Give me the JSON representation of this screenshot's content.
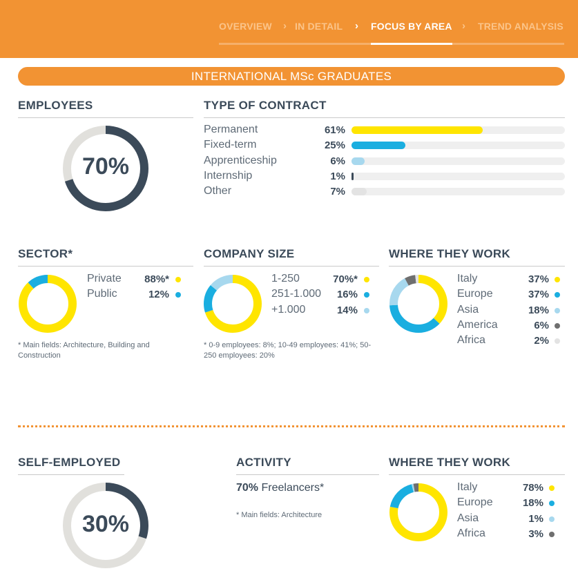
{
  "nav": {
    "items": [
      "OVERVIEW",
      "IN DETAIL",
      "FOCUS BY AREA",
      "TREND ANALYSIS"
    ],
    "separator": "›",
    "active": "FOCUS BY AREA"
  },
  "banner": "INTERNATIONAL MSc GRADUATES",
  "employees": {
    "heading": "EMPLOYEES",
    "percent": "70%",
    "value": 70
  },
  "contract": {
    "heading": "TYPE OF CONTRACT",
    "rows": [
      {
        "label": "Permanent",
        "pct": "61%",
        "value": 61,
        "color": "#ffe500"
      },
      {
        "label": "Fixed-term",
        "pct": "25%",
        "value": 25,
        "color": "#1aaee0"
      },
      {
        "label": "Apprenticeship",
        "pct": "6%",
        "value": 6,
        "color": "#a7d8ee"
      },
      {
        "label": "Internship",
        "pct": "1%",
        "value": 1,
        "color": "#3b4a59"
      },
      {
        "label": "Other",
        "pct": "7%",
        "value": 7,
        "color": "#e3e3e3"
      }
    ]
  },
  "sector": {
    "heading": "SECTOR*",
    "rows": [
      {
        "label": "Private",
        "pct": "88%*",
        "value": 88,
        "color": "#ffe500"
      },
      {
        "label": "Public",
        "pct": "12%",
        "value": 12,
        "color": "#1aaee0"
      }
    ],
    "note": "* Main fields: Architecture, Building and Construction"
  },
  "company_size": {
    "heading": "COMPANY SIZE",
    "rows": [
      {
        "label": "1-250",
        "pct": "70%*",
        "value": 70,
        "color": "#ffe500"
      },
      {
        "label": "251-1.000",
        "pct": "16%",
        "value": 16,
        "color": "#1aaee0"
      },
      {
        "label": "+1.000",
        "pct": "14%",
        "value": 14,
        "color": "#a7d8ee"
      }
    ],
    "note": "* 0-9 employees: 8%; 10-49 employees: 41%; 50-250 employees: 20%"
  },
  "where_employees": {
    "heading": "WHERE THEY WORK",
    "rows": [
      {
        "label": "Italy",
        "pct": "37%",
        "value": 37,
        "color": "#ffe500"
      },
      {
        "label": "Europe",
        "pct": "37%",
        "value": 37,
        "color": "#1aaee0"
      },
      {
        "label": "Asia",
        "pct": "18%",
        "value": 18,
        "color": "#a7d8ee"
      },
      {
        "label": "America",
        "pct": "6%",
        "value": 6,
        "color": "#6f6f6f"
      },
      {
        "label": "Africa",
        "pct": "2%",
        "value": 2,
        "color": "#e3e3e3"
      }
    ]
  },
  "self_employed": {
    "heading": "SELF-EMPLOYED",
    "percent": "30%",
    "value": 30
  },
  "activity": {
    "heading": "ACTIVITY",
    "pct": "70%",
    "label": "Freelancers*",
    "note": "* Main fields: Architecture"
  },
  "where_self": {
    "heading": "WHERE THEY WORK",
    "rows": [
      {
        "label": "Italy",
        "pct": "78%",
        "value": 78,
        "color": "#ffe500"
      },
      {
        "label": "Europe",
        "pct": "18%",
        "value": 18,
        "color": "#1aaee0"
      },
      {
        "label": "Asia",
        "pct": "1%",
        "value": 1,
        "color": "#a7d8ee"
      },
      {
        "label": "Africa",
        "pct": "3%",
        "value": 3,
        "color": "#6f6f6f"
      }
    ]
  },
  "colors": {
    "orange": "#f29333",
    "dark": "#3b4a59",
    "track": "#e1e0dc"
  }
}
